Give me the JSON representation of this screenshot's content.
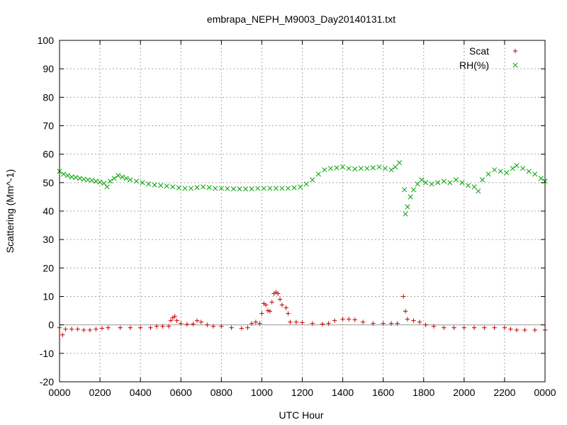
{
  "chart_data": {
    "type": "scatter",
    "title": "embrapa_NEPH_M9003_Day20140131.txt",
    "xlabel": "UTC Hour",
    "ylabel": "Scattering (Mm^-1)",
    "xlim": [
      0,
      24
    ],
    "ylim": [
      -20,
      100
    ],
    "x_tick_values": [
      0,
      2,
      4,
      6,
      8,
      10,
      12,
      14,
      16,
      18,
      20,
      22,
      24
    ],
    "x_tick_labels": [
      "0000",
      "0200",
      "0400",
      "0600",
      "0800",
      "1000",
      "1200",
      "1400",
      "1600",
      "1800",
      "2000",
      "2200",
      "0000"
    ],
    "y_ticks": [
      -20,
      -10,
      0,
      10,
      20,
      30,
      40,
      50,
      60,
      70,
      80,
      90,
      100
    ],
    "grid": true,
    "zero_line": true,
    "legend_position": "top-right",
    "series": [
      {
        "name": "Scat",
        "marker": "plus",
        "color": "#cc0000",
        "points": [
          [
            0.0,
            -1.0
          ],
          [
            0.15,
            -3.5
          ],
          [
            0.3,
            -1.5
          ],
          [
            0.6,
            -1.5
          ],
          [
            0.9,
            -1.5
          ],
          [
            1.2,
            -1.8
          ],
          [
            1.5,
            -1.8
          ],
          [
            1.8,
            -1.5
          ],
          [
            2.1,
            -1.2
          ],
          [
            2.4,
            -1.0
          ],
          [
            3.0,
            -1.0
          ],
          [
            3.5,
            -1.0
          ],
          [
            4.0,
            -1.0
          ],
          [
            4.5,
            -1.0
          ],
          [
            4.8,
            -0.5
          ],
          [
            5.1,
            -0.5
          ],
          [
            5.4,
            -0.5
          ],
          [
            5.5,
            1.5
          ],
          [
            5.6,
            2.5
          ],
          [
            5.7,
            3.0
          ],
          [
            5.8,
            1.5
          ],
          [
            6.0,
            0.5
          ],
          [
            6.3,
            0.2
          ],
          [
            6.6,
            0.3
          ],
          [
            6.8,
            1.5
          ],
          [
            7.0,
            1.0
          ],
          [
            7.3,
            0.0
          ],
          [
            7.6,
            -0.5
          ],
          [
            8.0,
            -0.5
          ],
          [
            8.5,
            -1.0
          ],
          [
            9.0,
            -1.2
          ],
          [
            9.3,
            -1.0
          ],
          [
            9.5,
            0.5
          ],
          [
            9.7,
            1.0
          ],
          [
            9.9,
            0.5
          ],
          [
            10.0,
            4.0
          ],
          [
            10.1,
            7.5
          ],
          [
            10.2,
            7.0
          ],
          [
            10.3,
            5.0
          ],
          [
            10.4,
            4.8
          ],
          [
            10.5,
            8.0
          ],
          [
            10.6,
            11.0
          ],
          [
            10.7,
            11.5
          ],
          [
            10.8,
            11.0
          ],
          [
            10.9,
            9.0
          ],
          [
            11.0,
            7.0
          ],
          [
            11.2,
            6.0
          ],
          [
            11.3,
            4.0
          ],
          [
            11.4,
            1.0
          ],
          [
            11.7,
            1.0
          ],
          [
            12.0,
            0.8
          ],
          [
            12.5,
            0.5
          ],
          [
            13.0,
            0.3
          ],
          [
            13.3,
            0.5
          ],
          [
            13.6,
            1.5
          ],
          [
            14.0,
            2.0
          ],
          [
            14.3,
            2.0
          ],
          [
            14.6,
            1.8
          ],
          [
            15.0,
            1.0
          ],
          [
            15.5,
            0.5
          ],
          [
            16.0,
            0.5
          ],
          [
            16.4,
            0.5
          ],
          [
            16.7,
            0.5
          ],
          [
            17.0,
            10.0
          ],
          [
            17.1,
            4.8
          ],
          [
            17.2,
            2.0
          ],
          [
            17.5,
            1.5
          ],
          [
            17.8,
            1.0
          ],
          [
            18.1,
            0.0
          ],
          [
            18.5,
            -0.5
          ],
          [
            19.0,
            -1.0
          ],
          [
            19.5,
            -1.0
          ],
          [
            20.0,
            -1.0
          ],
          [
            20.5,
            -1.0
          ],
          [
            21.0,
            -1.0
          ],
          [
            21.5,
            -1.0
          ],
          [
            22.0,
            -1.0
          ],
          [
            22.3,
            -1.5
          ],
          [
            22.6,
            -1.8
          ],
          [
            23.0,
            -1.8
          ],
          [
            23.5,
            -1.8
          ],
          [
            24.0,
            -1.8
          ]
        ]
      },
      {
        "name": "RH(%)",
        "marker": "cross",
        "color": "#00a000",
        "points": [
          [
            0.0,
            54.0
          ],
          [
            0.2,
            53.0
          ],
          [
            0.4,
            52.5
          ],
          [
            0.6,
            52.0
          ],
          [
            0.8,
            51.8
          ],
          [
            1.0,
            51.5
          ],
          [
            1.2,
            51.2
          ],
          [
            1.4,
            51.0
          ],
          [
            1.6,
            50.8
          ],
          [
            1.8,
            50.5
          ],
          [
            2.0,
            50.2
          ],
          [
            2.2,
            49.8
          ],
          [
            2.35,
            48.5
          ],
          [
            2.5,
            50.5
          ],
          [
            2.7,
            51.5
          ],
          [
            2.9,
            52.5
          ],
          [
            3.1,
            52.0
          ],
          [
            3.3,
            51.5
          ],
          [
            3.5,
            51.0
          ],
          [
            3.8,
            50.5
          ],
          [
            4.1,
            50.0
          ],
          [
            4.4,
            49.5
          ],
          [
            4.7,
            49.2
          ],
          [
            5.0,
            49.0
          ],
          [
            5.3,
            48.8
          ],
          [
            5.6,
            48.5
          ],
          [
            5.9,
            48.2
          ],
          [
            6.2,
            48.0
          ],
          [
            6.5,
            48.0
          ],
          [
            6.8,
            48.3
          ],
          [
            7.1,
            48.5
          ],
          [
            7.4,
            48.3
          ],
          [
            7.7,
            48.0
          ],
          [
            8.0,
            48.0
          ],
          [
            8.3,
            47.9
          ],
          [
            8.6,
            47.8
          ],
          [
            8.9,
            47.8
          ],
          [
            9.2,
            47.8
          ],
          [
            9.5,
            47.8
          ],
          [
            9.8,
            48.0
          ],
          [
            10.1,
            48.0
          ],
          [
            10.4,
            48.0
          ],
          [
            10.7,
            48.0
          ],
          [
            11.0,
            48.0
          ],
          [
            11.3,
            48.0
          ],
          [
            11.6,
            48.2
          ],
          [
            11.9,
            48.5
          ],
          [
            12.2,
            49.5
          ],
          [
            12.5,
            51.0
          ],
          [
            12.8,
            53.0
          ],
          [
            13.1,
            54.5
          ],
          [
            13.4,
            55.0
          ],
          [
            13.7,
            55.2
          ],
          [
            14.0,
            55.5
          ],
          [
            14.3,
            55.0
          ],
          [
            14.6,
            54.8
          ],
          [
            14.9,
            55.0
          ],
          [
            15.2,
            55.0
          ],
          [
            15.5,
            55.2
          ],
          [
            15.8,
            55.5
          ],
          [
            16.1,
            55.0
          ],
          [
            16.4,
            54.5
          ],
          [
            16.6,
            55.5
          ],
          [
            16.8,
            57.0
          ],
          [
            17.05,
            47.5
          ],
          [
            17.1,
            39.0
          ],
          [
            17.2,
            41.5
          ],
          [
            17.35,
            45.0
          ],
          [
            17.5,
            47.5
          ],
          [
            17.7,
            49.5
          ],
          [
            17.9,
            51.0
          ],
          [
            18.1,
            50.0
          ],
          [
            18.4,
            49.5
          ],
          [
            18.7,
            50.0
          ],
          [
            19.0,
            50.5
          ],
          [
            19.3,
            50.0
          ],
          [
            19.6,
            51.0
          ],
          [
            19.9,
            50.0
          ],
          [
            20.2,
            49.0
          ],
          [
            20.5,
            48.5
          ],
          [
            20.7,
            47.0
          ],
          [
            20.9,
            51.0
          ],
          [
            21.2,
            53.0
          ],
          [
            21.5,
            54.5
          ],
          [
            21.8,
            54.0
          ],
          [
            22.1,
            53.5
          ],
          [
            22.4,
            55.0
          ],
          [
            22.6,
            56.0
          ],
          [
            22.9,
            55.0
          ],
          [
            23.2,
            54.0
          ],
          [
            23.5,
            53.0
          ],
          [
            23.8,
            51.5
          ],
          [
            24.0,
            50.5
          ]
        ]
      }
    ]
  }
}
